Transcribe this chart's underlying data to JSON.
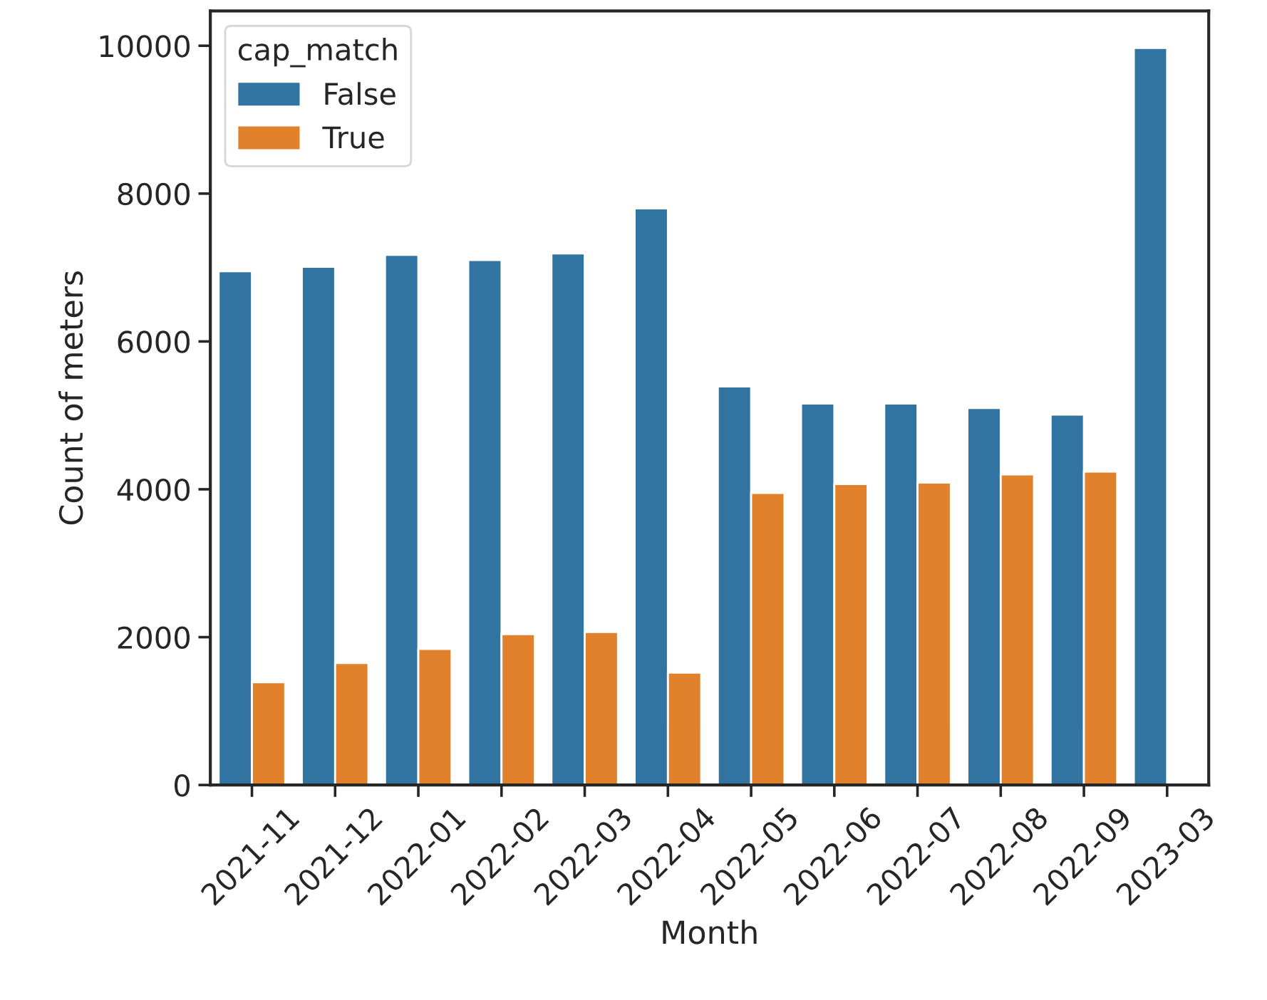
{
  "chart_data": {
    "type": "bar",
    "xlabel": "Month",
    "ylabel": "Count of meters",
    "legend_title": "cap_match",
    "legend": "top left",
    "categories": [
      "2021-11",
      "2021-12",
      "2022-01",
      "2022-02",
      "2022-03",
      "2022-04",
      "2022-05",
      "2022-06",
      "2022-07",
      "2022-08",
      "2022-09",
      "2023-03"
    ],
    "series": [
      {
        "name": "False",
        "color": "#3274a1",
        "values": [
          6950,
          7010,
          7170,
          7100,
          7190,
          7800,
          5390,
          5160,
          5160,
          5100,
          5010,
          9970
        ]
      },
      {
        "name": "True",
        "color": "#e1812c",
        "values": [
          1390,
          1650,
          1840,
          2040,
          2070,
          1520,
          3950,
          4070,
          4090,
          4200,
          4240,
          null
        ]
      }
    ],
    "ylim": [
      0,
      10470
    ],
    "yticks": [
      0,
      2000,
      4000,
      6000,
      8000,
      10000
    ],
    "grid": false
  }
}
